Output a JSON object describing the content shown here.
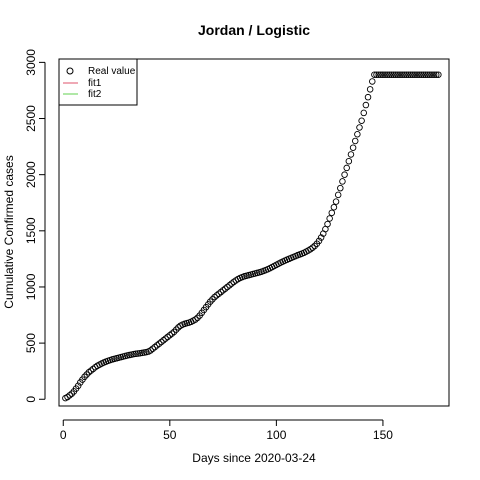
{
  "chart_data": {
    "type": "scatter",
    "title": "Jordan / Logistic",
    "xlabel": "Days since 2020-03-24",
    "ylabel": "Cumulative Confirmed cases",
    "xlim": [
      -2,
      181
    ],
    "ylim": [
      -60,
      3030
    ],
    "xticks": [
      0,
      50,
      100,
      150
    ],
    "yticks": [
      0,
      500,
      1000,
      1500,
      2000,
      2500,
      3000
    ],
    "grid": false,
    "legend": {
      "position": "top-left",
      "entries": [
        {
          "label": "Real value",
          "symbol": "open-circle",
          "color": "#000000"
        },
        {
          "label": "fit1",
          "symbol": "line",
          "color": "#df536b"
        },
        {
          "label": "fit2",
          "symbol": "line",
          "color": "#61d04f"
        }
      ]
    },
    "series": [
      {
        "name": "Real value",
        "marker": "open-circle",
        "x": [
          1,
          2,
          3,
          4,
          5,
          6,
          7,
          8,
          9,
          10,
          11,
          12,
          13,
          14,
          15,
          16,
          17,
          18,
          19,
          20,
          21,
          22,
          23,
          24,
          25,
          26,
          27,
          28,
          29,
          30,
          31,
          32,
          33,
          34,
          35,
          36,
          37,
          38,
          39,
          40,
          41,
          42,
          43,
          44,
          45,
          46,
          47,
          48,
          49,
          50,
          51,
          52,
          53,
          54,
          55,
          56,
          57,
          58,
          59,
          60,
          61,
          62,
          63,
          64,
          65,
          66,
          67,
          68,
          69,
          70,
          71,
          72,
          73,
          74,
          75,
          76,
          77,
          78,
          79,
          80,
          81,
          82,
          83,
          84,
          85,
          86,
          87,
          88,
          89,
          90,
          91,
          92,
          93,
          94,
          95,
          96,
          97,
          98,
          99,
          100,
          101,
          102,
          103,
          104,
          105,
          106,
          107,
          108,
          109,
          110,
          111,
          112,
          113,
          114,
          115,
          116,
          117,
          118,
          119,
          120,
          121,
          122,
          123,
          124,
          125,
          126,
          127,
          128,
          129,
          130,
          131,
          132,
          133,
          134,
          135,
          136,
          137,
          138,
          139,
          140,
          141,
          142,
          143,
          144,
          145,
          146,
          147,
          148,
          149,
          150,
          151,
          152,
          153,
          154,
          155,
          156,
          157,
          158,
          159,
          160,
          161,
          162,
          163,
          164,
          165,
          166,
          167,
          168,
          169,
          170,
          171,
          172,
          173,
          174,
          175,
          176
        ],
        "y": [
          10,
          20,
          35,
          50,
          70,
          95,
          120,
          150,
          175,
          200,
          220,
          240,
          255,
          270,
          285,
          298,
          308,
          318,
          327,
          335,
          342,
          349,
          355,
          360,
          365,
          370,
          375,
          380,
          385,
          390,
          394,
          398,
          402,
          405,
          407,
          410,
          413,
          416,
          420,
          425,
          435,
          450,
          465,
          480,
          495,
          510,
          525,
          540,
          555,
          570,
          585,
          600,
          620,
          640,
          655,
          665,
          672,
          678,
          683,
          690,
          700,
          710,
          725,
          745,
          770,
          795,
          820,
          845,
          870,
          890,
          910,
          925,
          940,
          955,
          970,
          985,
          1000,
          1015,
          1030,
          1045,
          1058,
          1070,
          1080,
          1088,
          1095,
          1100,
          1105,
          1110,
          1115,
          1120,
          1125,
          1130,
          1136,
          1143,
          1150,
          1158,
          1167,
          1177,
          1187,
          1197,
          1207,
          1217,
          1226,
          1235,
          1243,
          1251,
          1259,
          1267,
          1275,
          1283,
          1290,
          1297,
          1305,
          1315,
          1325,
          1336,
          1350,
          1365,
          1385,
          1410,
          1440,
          1475,
          1515,
          1560,
          1610,
          1660,
          1710,
          1760,
          1820,
          1880,
          1940,
          2000,
          2060,
          2120,
          2180,
          2240,
          2300,
          2360,
          2420,
          2480,
          2550,
          2620,
          2690,
          2760,
          2830,
          2890,
          2890,
          2890,
          2890,
          2890,
          2890,
          2890,
          2890,
          2890,
          2890,
          2890,
          2890,
          2890,
          2890,
          2890,
          2890,
          2890,
          2890,
          2890,
          2890,
          2890,
          2890,
          2890,
          2890,
          2890,
          2890,
          2890,
          2890,
          2890,
          2890,
          2890
        ]
      }
    ]
  }
}
